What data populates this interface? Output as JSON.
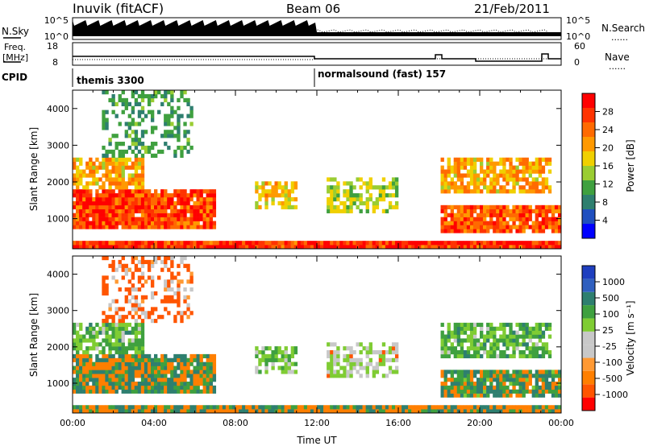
{
  "header": {
    "station": "Inuvik (fitACF)",
    "beam": "Beam 06",
    "date": "21/Feb/2011"
  },
  "left_labels": {
    "nsky": "N.Sky",
    "freq_line1": "Freq.",
    "freq_line2": "[MHz]",
    "cpid": "CPID"
  },
  "right_labels": {
    "nsearch": "N.Search",
    "nave": "Nave",
    "dots": "......"
  },
  "cpid_modes": [
    {
      "label": "themis 3300",
      "start_hour": 0
    },
    {
      "label": "normalsound (fast) 157",
      "start_hour": 12
    }
  ],
  "colors": {
    "power": [
      "#0000ff",
      "#1f4fbf",
      "#2e7f6f",
      "#3fa03f",
      "#9acd32",
      "#f0d000",
      "#ff9900",
      "#ff6a00",
      "#ff3300",
      "#ff0000"
    ],
    "velocity": [
      "#ff0000",
      "#ff5500",
      "#ff7f00",
      "#ff9933",
      "#c8c8c8",
      "#c8c8c8",
      "#7fcc33",
      "#3fa03f",
      "#2e7f6f",
      "#2f5fbf",
      "#1f3fbf"
    ]
  },
  "chart_data": [
    {
      "type": "line",
      "panel": "noise",
      "left_ticks": [
        "10^5",
        "10^0"
      ],
      "right_ticks": [
        "10^5",
        "10^0"
      ]
    },
    {
      "type": "line",
      "panel": "frequency",
      "left_ticks": [
        "18",
        "8"
      ],
      "right_ticks": [
        "60",
        "0"
      ]
    },
    {
      "type": "heatmap",
      "panel": "power",
      "ylabel": "Slant Range [km]",
      "ylim": [
        180,
        4500
      ],
      "yticks": [
        "1000",
        "2000",
        "3000",
        "4000"
      ],
      "xlim": [
        0,
        24
      ],
      "colorbar": {
        "label": "Power [dB]",
        "range": [
          0,
          32
        ],
        "ticks": [
          "4",
          "8",
          "12",
          "16",
          "20",
          "24",
          "28"
        ]
      }
    },
    {
      "type": "heatmap",
      "panel": "velocity",
      "ylabel": "Slant Range [km]",
      "ylim": [
        180,
        4500
      ],
      "yticks": [
        "1000",
        "2000",
        "3000",
        "4000"
      ],
      "xlim": [
        0,
        24
      ],
      "xticks": [
        "00:00",
        "04:00",
        "08:00",
        "12:00",
        "16:00",
        "20:00",
        "00:00"
      ],
      "xlabel": "Time UT",
      "colorbar": {
        "label": "Velocity [m s⁻¹]",
        "ticks": [
          "1000",
          "500",
          "100",
          "25",
          "-25",
          "-100",
          "-500",
          "-1000"
        ]
      }
    }
  ]
}
